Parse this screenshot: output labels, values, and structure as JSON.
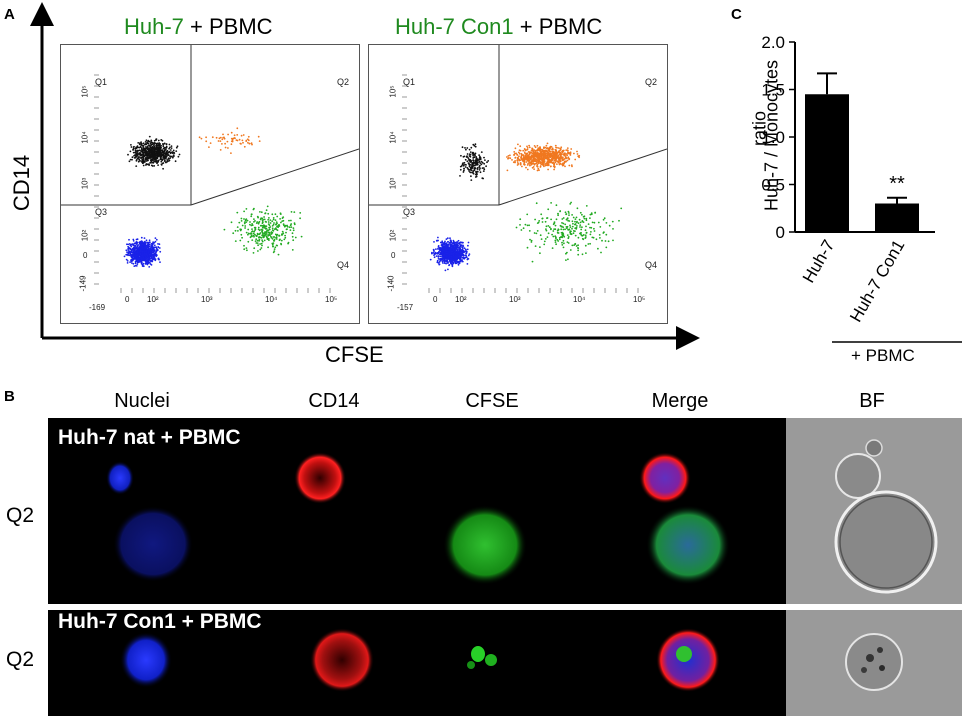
{
  "panel_a": {
    "letter": "A",
    "y_axis_label": "CD14",
    "x_axis_label": "CFSE",
    "plot_left": {
      "title_green": "Huh-7",
      "title_black": " + PBMC",
      "quadrants": [
        "Q1",
        "Q2",
        "Q3",
        "Q4"
      ],
      "y_ticks": [
        "10⁵",
        "10⁴",
        "10³",
        "10²",
        "0",
        "-149"
      ],
      "x_ticks": [
        "-169",
        "0",
        "10²",
        "10³",
        "10⁴",
        "10⁵"
      ]
    },
    "plot_right": {
      "title_green": "Huh-7 Con1",
      "title_black": " + PBMC",
      "quadrants": [
        "Q1",
        "Q2",
        "Q3",
        "Q4"
      ],
      "y_ticks": [
        "10⁵",
        "10⁴",
        "10³",
        "10²",
        "0",
        "-140"
      ],
      "x_ticks": [
        "-157",
        "0",
        "10²",
        "10³",
        "10⁴",
        "10⁵"
      ]
    }
  },
  "panel_b": {
    "letter": "B",
    "columns": [
      "Nuclei",
      "CD14",
      "CFSE",
      "Merge",
      "BF"
    ],
    "rows": [
      {
        "label": "Huh-7 nat + PBMC",
        "gate": "Q2"
      },
      {
        "label": "Huh-7 Con1 + PBMC",
        "gate": "Q2"
      }
    ]
  },
  "panel_c": {
    "letter": "C",
    "group_label": "+ PBMC",
    "significance": "**",
    "chart_data": {
      "type": "bar",
      "categories": [
        "Huh-7",
        "Huh-7 Con1"
      ],
      "values": [
        1.45,
        0.3
      ],
      "errors": [
        0.22,
        0.06
      ],
      "ylabel_line1": "ratio",
      "ylabel_line2": "Huh-7 / Monocytes",
      "ylim": [
        0,
        2.0
      ],
      "yticks": [
        "0",
        "0.5",
        "1.0",
        "1.5",
        "2.0"
      ],
      "ytick_values": [
        0,
        0.5,
        1.0,
        1.5,
        2.0
      ]
    }
  },
  "colors": {
    "q1": "#111111",
    "q2": "#f07820",
    "q3": "#1a22e8",
    "q4": "#22aa22",
    "title_green": "#1f8a1f",
    "stain_blue": "#1020d0",
    "stain_red": "#e01010",
    "stain_green": "#20b020"
  }
}
